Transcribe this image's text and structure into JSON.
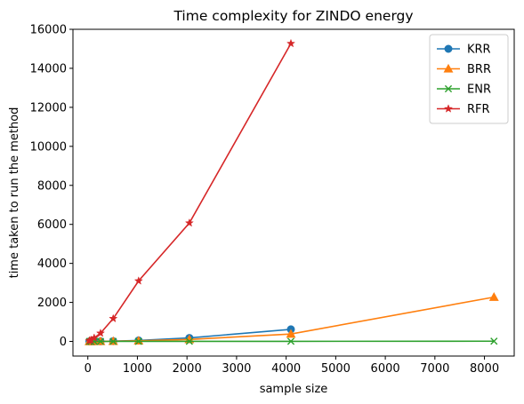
{
  "chart_data": {
    "type": "line",
    "title": "Time complexity for ZINDO energy",
    "xlabel": "sample size",
    "ylabel": "time taken to run the method",
    "xlim": [
      -300,
      8600
    ],
    "ylim": [
      -750,
      16000
    ],
    "xticks": [
      0,
      1000,
      2000,
      3000,
      4000,
      5000,
      6000,
      7000,
      8000
    ],
    "yticks": [
      0,
      2000,
      4000,
      6000,
      8000,
      10000,
      12000,
      14000,
      16000
    ],
    "grid": false,
    "legend_position": "top-right",
    "series": [
      {
        "name": "KRR",
        "color": "#1f77b4",
        "marker": "circle",
        "x": [
          32,
          64,
          128,
          256,
          512,
          1024,
          2048,
          4096
        ],
        "y": [
          0,
          1,
          2,
          5,
          15,
          50,
          180,
          620
        ]
      },
      {
        "name": "BRR",
        "color": "#ff7f0e",
        "marker": "triangle",
        "x": [
          32,
          64,
          128,
          256,
          512,
          1024,
          2048,
          4096,
          8192
        ],
        "y": [
          0,
          1,
          2,
          4,
          10,
          30,
          100,
          380,
          2270
        ]
      },
      {
        "name": "ENR",
        "color": "#2ca02c",
        "marker": "x",
        "x": [
          32,
          64,
          128,
          256,
          512,
          1024,
          2048,
          4096,
          8192
        ],
        "y": [
          0,
          0,
          0,
          1,
          1,
          2,
          3,
          5,
          12
        ]
      },
      {
        "name": "RFR",
        "color": "#d62728",
        "marker": "star",
        "x": [
          32,
          64,
          128,
          256,
          512,
          1024,
          2048,
          4096
        ],
        "y": [
          30,
          70,
          180,
          420,
          1170,
          3100,
          6070,
          15270
        ]
      }
    ]
  }
}
